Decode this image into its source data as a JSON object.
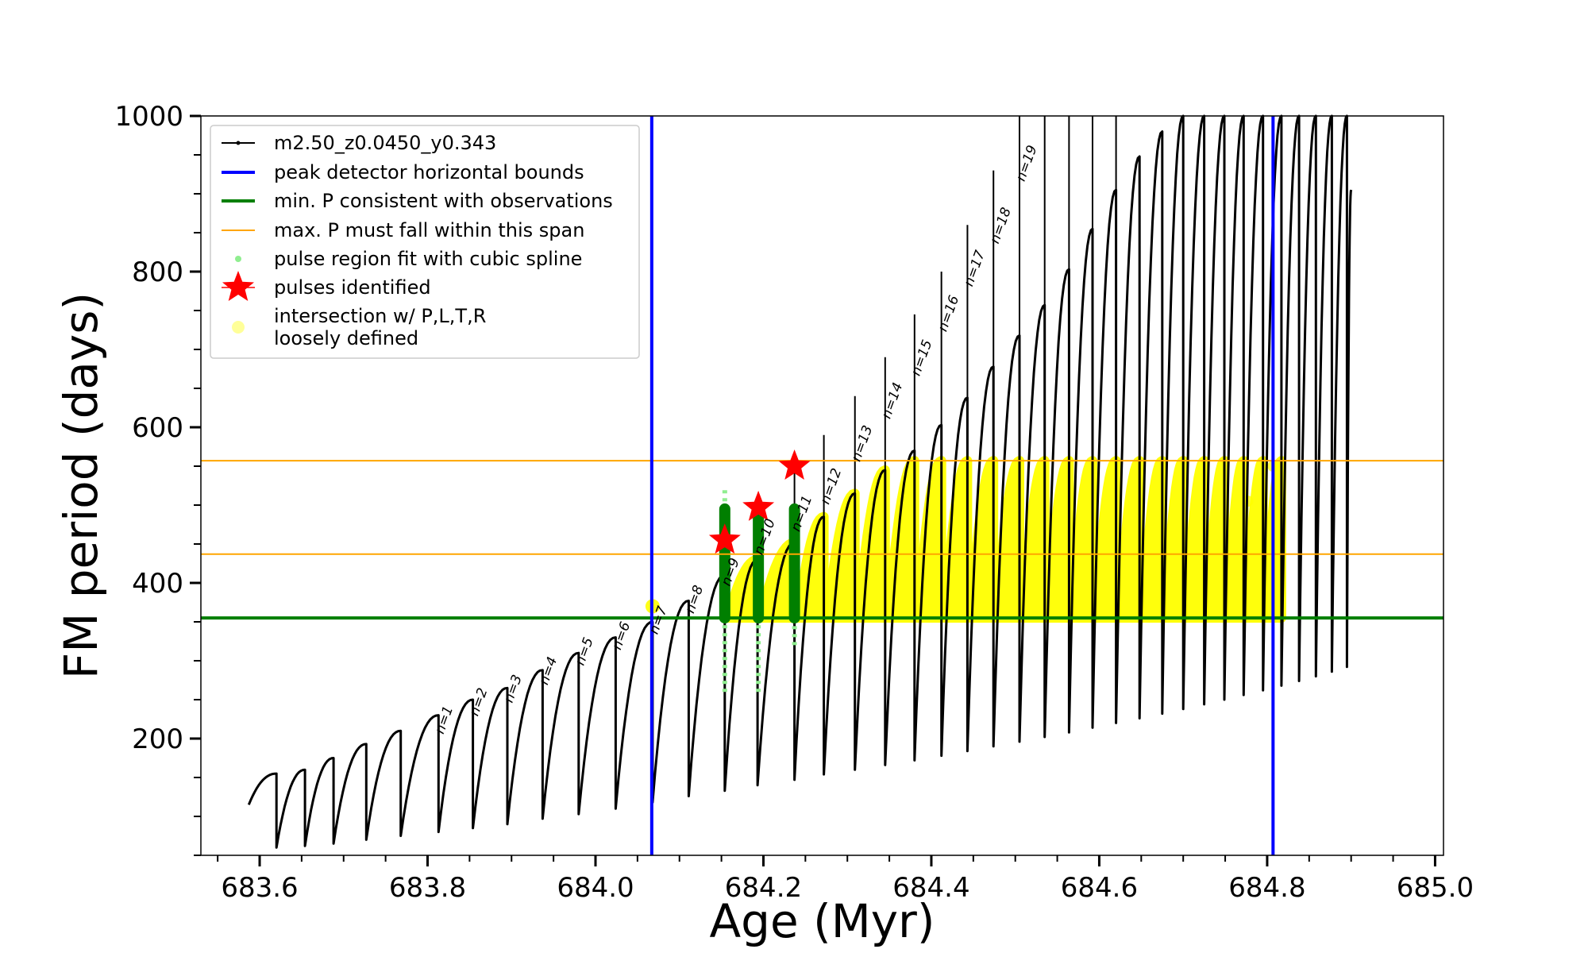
{
  "chart_data": {
    "type": "line",
    "xlabel": "Age (Myr)",
    "ylabel": "FM period (days)",
    "xlim": [
      683.53,
      685.01
    ],
    "ylim": [
      50,
      1000
    ],
    "x_ticks": [
      "683.6",
      "683.8",
      "684.0",
      "684.2",
      "684.4",
      "684.6",
      "684.8",
      "685.0"
    ],
    "x_tick_values": [
      683.6,
      683.8,
      684.0,
      684.2,
      684.4,
      684.6,
      684.8,
      685.0
    ],
    "y_ticks": [
      "200",
      "400",
      "600",
      "800",
      "1000"
    ],
    "y_tick_values": [
      200,
      400,
      600,
      800,
      1000
    ],
    "grid": false,
    "legend_position": "top-left",
    "colors": {
      "track": "#000000",
      "bounds": "#0000ff",
      "min_p": "#007f00",
      "max_p": "#ffa500",
      "spline": "#90ee90",
      "pulse": "#ff0000",
      "intersection": "#ffff00"
    },
    "legend": [
      {
        "label": "m2.50_z0.0450_y0.343",
        "marker": "line-dot",
        "color": "#000000"
      },
      {
        "label": "peak detector horizontal bounds",
        "marker": "line",
        "color": "#0000ff"
      },
      {
        "label": "min. P consistent with observations",
        "marker": "line",
        "color": "#007f00"
      },
      {
        "label": "max. P must fall within this span",
        "marker": "thin-line",
        "color": "#ffa500"
      },
      {
        "label": "pulse region fit with cubic spline",
        "marker": "dot",
        "color": "#90ee90"
      },
      {
        "label": "pulses identified",
        "marker": "star",
        "color": "#ff0000"
      },
      {
        "label": "intersection w/ P,L,T,R",
        "label2": "loosely defined",
        "marker": "circle",
        "color": "#ffff99"
      }
    ],
    "vlines": [
      684.067,
      684.807
    ],
    "min_p_line": 355,
    "max_p_span": [
      437,
      557
    ],
    "track_start": {
      "x": 683.587,
      "y": 115
    },
    "cycles": [
      {
        "x": 683.62,
        "lo": 60,
        "hi": 155
      },
      {
        "x": 683.654,
        "lo": 62,
        "hi": 160
      },
      {
        "x": 683.688,
        "lo": 65,
        "hi": 175
      },
      {
        "x": 683.727,
        "lo": 70,
        "hi": 193
      },
      {
        "x": 683.768,
        "lo": 75,
        "hi": 210
      },
      {
        "x": 683.813,
        "lo": 80,
        "hi": 230
      },
      {
        "x": 683.854,
        "lo": 85,
        "hi": 250
      },
      {
        "x": 683.895,
        "lo": 90,
        "hi": 265
      },
      {
        "x": 683.937,
        "lo": 97,
        "hi": 288
      },
      {
        "x": 683.98,
        "lo": 103,
        "hi": 310
      },
      {
        "x": 684.024,
        "lo": 110,
        "hi": 330
      },
      {
        "x": 684.068,
        "lo": 118,
        "hi": 350
      },
      {
        "x": 684.111,
        "lo": 126,
        "hi": 377
      },
      {
        "x": 684.154,
        "lo": 133,
        "hi": 410
      },
      {
        "x": 684.193,
        "lo": 140,
        "hi": 430
      },
      {
        "x": 684.237,
        "lo": 147,
        "hi": 452
      },
      {
        "x": 684.272,
        "lo": 154,
        "hi": 485
      },
      {
        "x": 684.309,
        "lo": 160,
        "hi": 515
      },
      {
        "x": 684.345,
        "lo": 166,
        "hi": 545
      },
      {
        "x": 684.38,
        "lo": 172,
        "hi": 570
      },
      {
        "x": 684.412,
        "lo": 178,
        "hi": 603
      },
      {
        "x": 684.443,
        "lo": 184,
        "hi": 638
      },
      {
        "x": 684.474,
        "lo": 190,
        "hi": 678
      },
      {
        "x": 684.505,
        "lo": 196,
        "hi": 718
      },
      {
        "x": 684.535,
        "lo": 202,
        "hi": 757
      },
      {
        "x": 684.564,
        "lo": 208,
        "hi": 803
      },
      {
        "x": 684.592,
        "lo": 214,
        "hi": 855
      },
      {
        "x": 684.62,
        "lo": 220,
        "hi": 905
      },
      {
        "x": 684.648,
        "lo": 226,
        "hi": 948
      },
      {
        "x": 684.675,
        "lo": 232,
        "hi": 980
      },
      {
        "x": 684.7,
        "lo": 238,
        "hi": 1000
      },
      {
        "x": 684.725,
        "lo": 244,
        "hi": 1000
      },
      {
        "x": 684.749,
        "lo": 250,
        "hi": 1000
      },
      {
        "x": 684.772,
        "lo": 256,
        "hi": 1000
      },
      {
        "x": 684.795,
        "lo": 262,
        "hi": 1000
      },
      {
        "x": 684.817,
        "lo": 268,
        "hi": 1000
      },
      {
        "x": 684.838,
        "lo": 274,
        "hi": 1000
      },
      {
        "x": 684.858,
        "lo": 280,
        "hi": 1000
      },
      {
        "x": 684.877,
        "lo": 286,
        "hi": 1000
      },
      {
        "x": 684.895,
        "lo": 292,
        "hi": 1000
      }
    ],
    "track_end": {
      "x": 684.9,
      "y": 905
    },
    "pulse_spikes": [
      {
        "x": 684.154,
        "top": 470
      },
      {
        "x": 684.193,
        "top": 470
      },
      {
        "x": 684.237,
        "top": 560
      },
      {
        "x": 684.272,
        "top": 590
      },
      {
        "x": 684.309,
        "top": 640
      },
      {
        "x": 684.345,
        "top": 690
      },
      {
        "x": 684.38,
        "top": 745
      },
      {
        "x": 684.412,
        "top": 800
      },
      {
        "x": 684.443,
        "top": 860
      },
      {
        "x": 684.474,
        "top": 930
      },
      {
        "x": 684.505,
        "top": 1000
      },
      {
        "x": 684.535,
        "top": 1000
      },
      {
        "x": 684.564,
        "top": 1000
      },
      {
        "x": 684.592,
        "top": 1000
      },
      {
        "x": 684.62,
        "top": 1000
      }
    ],
    "pulse_labels": [
      {
        "text": "n=1",
        "x": 683.813,
        "y": 205
      },
      {
        "text": "n=2",
        "x": 683.854,
        "y": 228
      },
      {
        "text": "n=3",
        "x": 683.895,
        "y": 245
      },
      {
        "text": "n=4",
        "x": 683.937,
        "y": 268
      },
      {
        "text": "n=5",
        "x": 683.98,
        "y": 293
      },
      {
        "text": "n=6",
        "x": 684.024,
        "y": 313
      },
      {
        "text": "n=7",
        "x": 684.068,
        "y": 333
      },
      {
        "text": "n=8",
        "x": 684.111,
        "y": 360
      },
      {
        "text": "n=9",
        "x": 684.154,
        "y": 395
      },
      {
        "text": "n=10",
        "x": 684.193,
        "y": 435
      },
      {
        "text": "n=11",
        "x": 684.237,
        "y": 465
      },
      {
        "text": "n=12",
        "x": 684.272,
        "y": 500
      },
      {
        "text": "n=13",
        "x": 684.309,
        "y": 555
      },
      {
        "text": "n=14",
        "x": 684.345,
        "y": 610
      },
      {
        "text": "n=15",
        "x": 684.38,
        "y": 665
      },
      {
        "text": "n=16",
        "x": 684.412,
        "y": 722
      },
      {
        "text": "n=17",
        "x": 684.443,
        "y": 780
      },
      {
        "text": "n=18",
        "x": 684.474,
        "y": 835
      },
      {
        "text": "n=19",
        "x": 684.505,
        "y": 915
      }
    ],
    "pulses_identified": [
      {
        "x": 684.154,
        "y": 455
      },
      {
        "x": 684.194,
        "y": 497
      },
      {
        "x": 684.237,
        "y": 550
      }
    ],
    "spline_regions": [
      {
        "x": 684.154,
        "lo": 260,
        "hi": 525
      },
      {
        "x": 684.194,
        "lo": 260,
        "hi": 500
      },
      {
        "x": 684.237,
        "lo": 320,
        "hi": 500
      }
    ],
    "green_fits": [
      {
        "x": 684.154,
        "lo": 355,
        "hi": 495
      },
      {
        "x": 684.194,
        "lo": 355,
        "hi": 495
      },
      {
        "x": 684.237,
        "lo": 355,
        "hi": 495
      }
    ],
    "yellow_end_points": [
      {
        "x": 684.777,
        "y": 505
      },
      {
        "x": 684.807,
        "y": 550
      }
    ]
  }
}
